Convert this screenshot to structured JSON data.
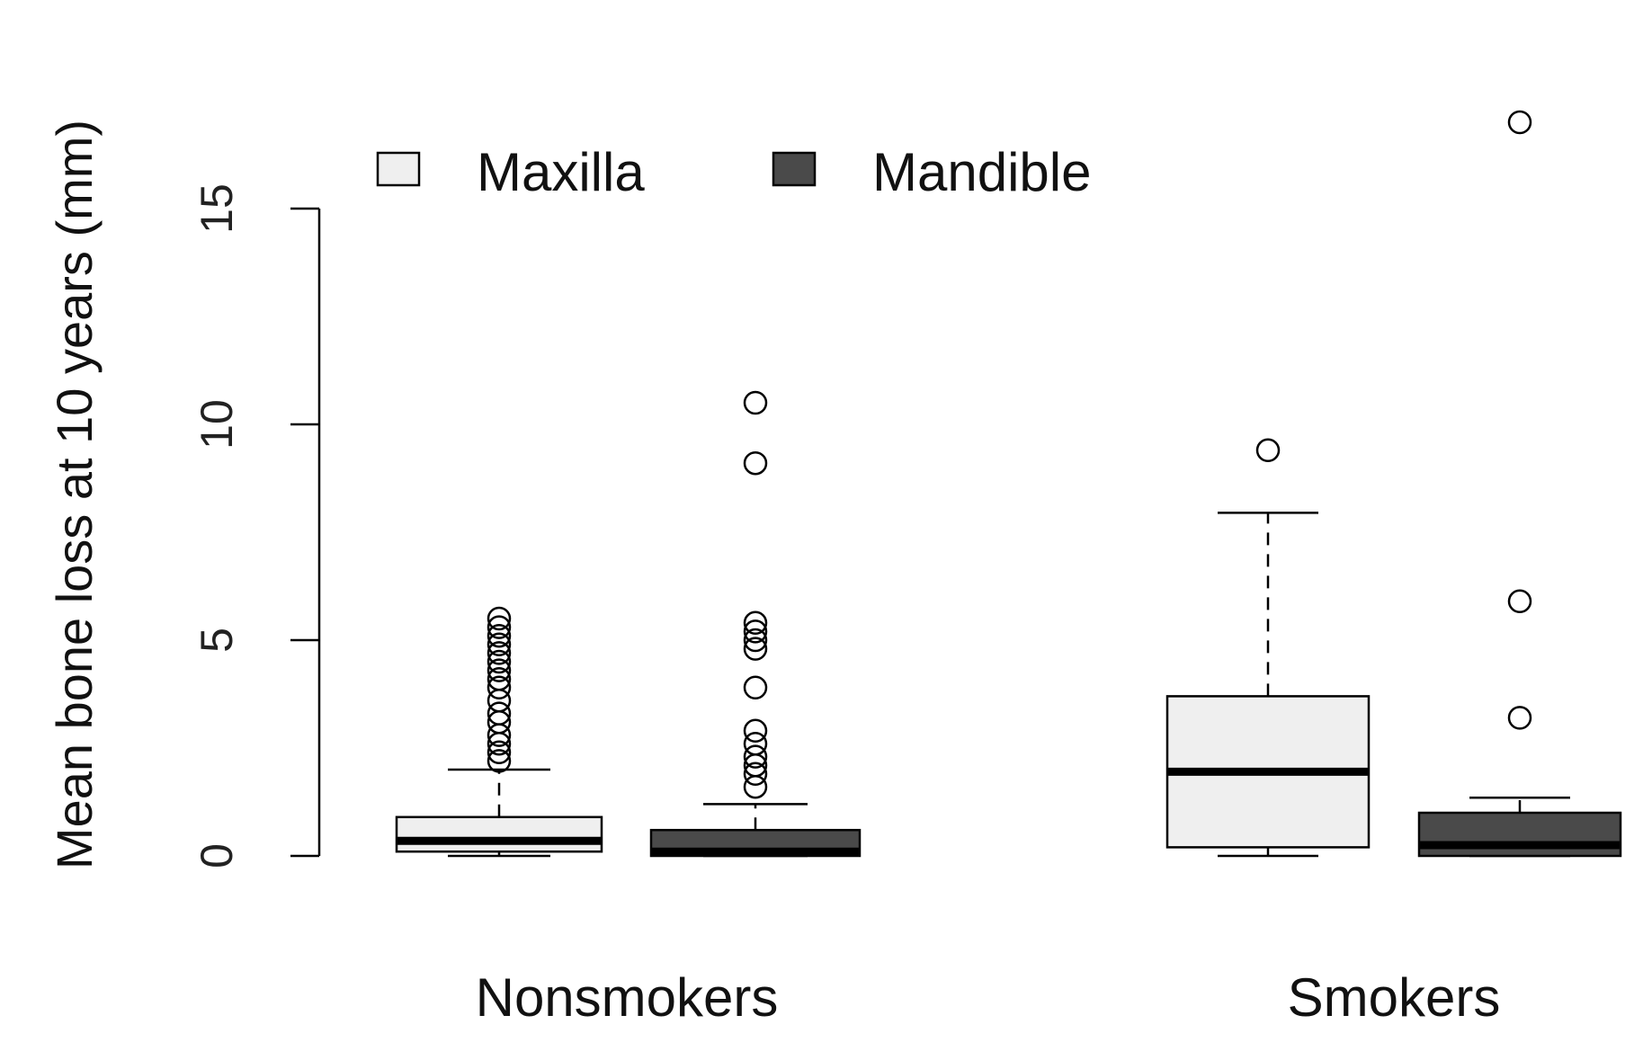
{
  "chart_data": {
    "type": "boxplot",
    "title": "",
    "ylabel": "Mean bone loss at 10 years (mm)",
    "xlabel": "",
    "ylim": [
      0,
      15
    ],
    "yticks": [
      0,
      5,
      10,
      15
    ],
    "yticks_labels": [
      "0",
      "5",
      "10",
      "15"
    ],
    "grid": false,
    "legend": {
      "placement": "top-left",
      "entries": [
        "Maxilla",
        "Mandible"
      ]
    },
    "groups": [
      "Nonsmokers",
      "Smokers"
    ],
    "series": [
      {
        "name": "Maxilla",
        "color": "#efefef"
      },
      {
        "name": "Mandible",
        "color": "#4a4a4a"
      }
    ],
    "boxes": [
      {
        "group": "Nonsmokers",
        "series": "Maxilla",
        "min": 0,
        "q1": 0.1,
        "median": 0.35,
        "q3": 0.9,
        "max": 2.0,
        "outliers": [
          2.2,
          2.4,
          2.6,
          2.8,
          3.1,
          3.3,
          3.6,
          3.9,
          4.1,
          4.3,
          4.5,
          4.7,
          4.9,
          5.1,
          5.3,
          5.5
        ]
      },
      {
        "group": "Nonsmokers",
        "series": "Mandible",
        "min": 0,
        "q1": 0,
        "median": 0.1,
        "q3": 0.6,
        "max": 1.2,
        "outliers": [
          1.6,
          1.9,
          2.1,
          2.3,
          2.6,
          2.9,
          3.9,
          4.8,
          5.0,
          5.2,
          5.4,
          9.1,
          10.5
        ]
      },
      {
        "group": "Smokers",
        "series": "Maxilla",
        "min": 0,
        "q1": 0.2,
        "median": 1.95,
        "q3": 3.7,
        "max": 7.95,
        "outliers": [
          9.4
        ]
      },
      {
        "group": "Smokers",
        "series": "Mandible",
        "min": 0,
        "q1": 0,
        "median": 0.25,
        "q3": 1.0,
        "max": 1.35,
        "outliers": [
          3.2,
          5.9,
          17.0
        ]
      }
    ],
    "colors": {
      "maxilla_fill": "#efefef",
      "mandible_fill": "#4a4a4a",
      "stroke": "#000000"
    }
  }
}
